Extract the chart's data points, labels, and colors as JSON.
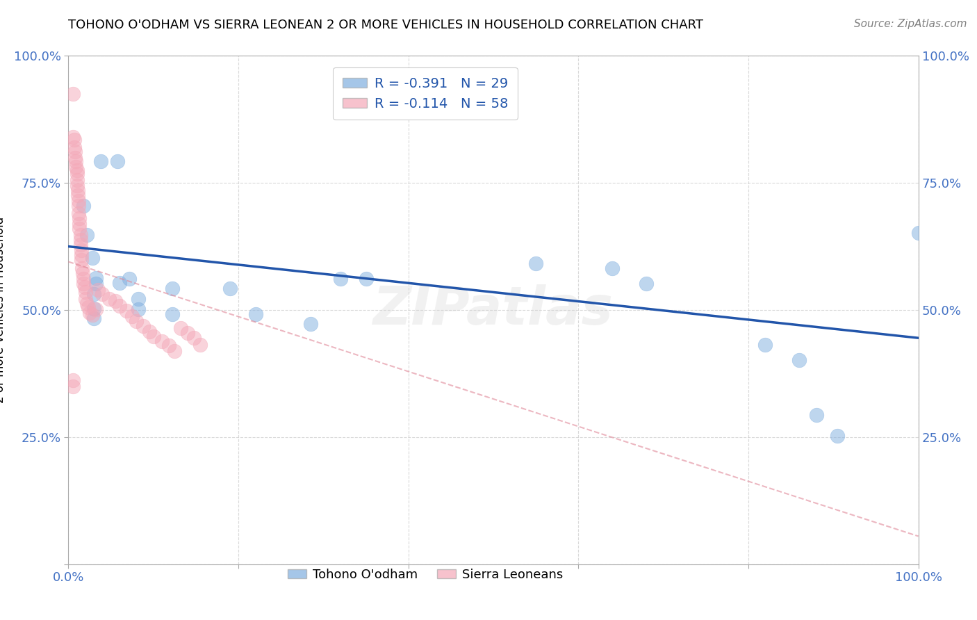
{
  "title": "TOHONO O'ODHAM VS SIERRA LEONEAN 2 OR MORE VEHICLES IN HOUSEHOLD CORRELATION CHART",
  "source": "Source: ZipAtlas.com",
  "ylabel": "2 or more Vehicles in Household",
  "watermark": "ZIPatlas",
  "xlim": [
    0,
    1.0
  ],
  "ylim": [
    0,
    1.0
  ],
  "xtick_vals": [
    0.0,
    0.2,
    0.4,
    0.6,
    0.8,
    1.0
  ],
  "ytick_vals": [
    0.0,
    0.25,
    0.5,
    0.75,
    1.0
  ],
  "x_left_label": "0.0%",
  "x_right_label": "100.0%",
  "y_bottom_label": "",
  "y_25_label": "25.0%",
  "y_50_label": "50.0%",
  "y_75_label": "75.0%",
  "y_100_label": "100.0%",
  "legend_r1": "R = -0.391",
  "legend_n1": "N = 29",
  "legend_r2": "R = -0.114",
  "legend_n2": "N = 58",
  "legend_bottom_label1": "Tohono O'odham",
  "legend_bottom_label2": "Sierra Leoneans",
  "blue_color": "#7faedf",
  "pink_color": "#f4a8b8",
  "blue_line_color": "#2255aa",
  "pink_line_color": "#e08898",
  "tick_label_color": "#4472c4",
  "legend_text_color": "#2255aa",
  "blue_scatter": [
    [
      0.018,
      0.705
    ],
    [
      0.022,
      0.648
    ],
    [
      0.038,
      0.793
    ],
    [
      0.058,
      0.793
    ],
    [
      0.028,
      0.603
    ],
    [
      0.032,
      0.563
    ],
    [
      0.032,
      0.552
    ],
    [
      0.03,
      0.532
    ],
    [
      0.03,
      0.503
    ],
    [
      0.03,
      0.483
    ],
    [
      0.06,
      0.553
    ],
    [
      0.072,
      0.562
    ],
    [
      0.082,
      0.522
    ],
    [
      0.082,
      0.502
    ],
    [
      0.122,
      0.542
    ],
    [
      0.122,
      0.492
    ],
    [
      0.19,
      0.542
    ],
    [
      0.22,
      0.492
    ],
    [
      0.285,
      0.472
    ],
    [
      0.32,
      0.562
    ],
    [
      0.35,
      0.562
    ],
    [
      0.55,
      0.592
    ],
    [
      0.64,
      0.582
    ],
    [
      0.68,
      0.552
    ],
    [
      0.82,
      0.432
    ],
    [
      0.86,
      0.402
    ],
    [
      0.88,
      0.293
    ],
    [
      0.905,
      0.252
    ],
    [
      1.0,
      0.652
    ]
  ],
  "pink_scatter": [
    [
      0.005,
      0.925
    ],
    [
      0.005,
      0.84
    ],
    [
      0.007,
      0.835
    ],
    [
      0.007,
      0.82
    ],
    [
      0.008,
      0.812
    ],
    [
      0.008,
      0.8
    ],
    [
      0.009,
      0.792
    ],
    [
      0.009,
      0.782
    ],
    [
      0.01,
      0.775
    ],
    [
      0.01,
      0.768
    ],
    [
      0.01,
      0.755
    ],
    [
      0.01,
      0.745
    ],
    [
      0.011,
      0.735
    ],
    [
      0.011,
      0.725
    ],
    [
      0.012,
      0.715
    ],
    [
      0.012,
      0.705
    ],
    [
      0.012,
      0.69
    ],
    [
      0.013,
      0.68
    ],
    [
      0.013,
      0.67
    ],
    [
      0.013,
      0.66
    ],
    [
      0.014,
      0.648
    ],
    [
      0.014,
      0.638
    ],
    [
      0.014,
      0.628
    ],
    [
      0.015,
      0.618
    ],
    [
      0.015,
      0.608
    ],
    [
      0.015,
      0.598
    ],
    [
      0.016,
      0.582
    ],
    [
      0.017,
      0.572
    ],
    [
      0.018,
      0.562
    ],
    [
      0.018,
      0.552
    ],
    [
      0.019,
      0.545
    ],
    [
      0.02,
      0.535
    ],
    [
      0.02,
      0.522
    ],
    [
      0.022,
      0.512
    ],
    [
      0.023,
      0.505
    ],
    [
      0.025,
      0.495
    ],
    [
      0.028,
      0.49
    ],
    [
      0.032,
      0.502
    ],
    [
      0.035,
      0.54
    ],
    [
      0.04,
      0.532
    ],
    [
      0.048,
      0.522
    ],
    [
      0.055,
      0.518
    ],
    [
      0.06,
      0.508
    ],
    [
      0.068,
      0.498
    ],
    [
      0.075,
      0.488
    ],
    [
      0.08,
      0.478
    ],
    [
      0.088,
      0.468
    ],
    [
      0.095,
      0.458
    ],
    [
      0.1,
      0.448
    ],
    [
      0.11,
      0.438
    ],
    [
      0.118,
      0.43
    ],
    [
      0.125,
      0.42
    ],
    [
      0.132,
      0.465
    ],
    [
      0.14,
      0.455
    ],
    [
      0.148,
      0.445
    ],
    [
      0.155,
      0.432
    ],
    [
      0.005,
      0.362
    ],
    [
      0.005,
      0.35
    ]
  ],
  "blue_trend_x": [
    0.0,
    1.0
  ],
  "blue_trend_y": [
    0.625,
    0.445
  ],
  "pink_trend_x": [
    0.0,
    1.0
  ],
  "pink_trend_y": [
    0.595,
    0.055
  ],
  "background_color": "#ffffff",
  "grid_color": "#d0d0d0"
}
